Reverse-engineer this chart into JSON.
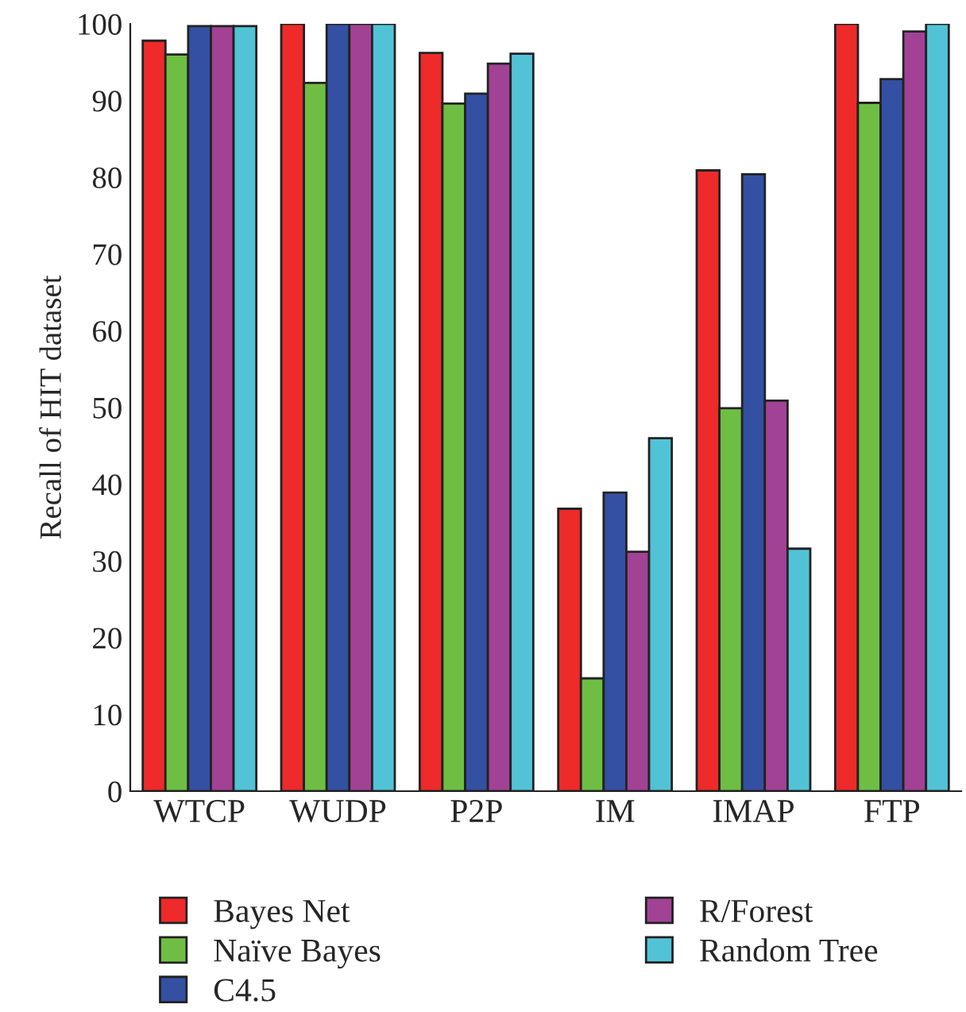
{
  "chart_data": {
    "type": "bar",
    "ylabel": "Recall of HIT dataset",
    "categories": [
      "WTCP",
      "WUDP",
      "P2P",
      "IM",
      "IMAP",
      "FTP"
    ],
    "series": [
      {
        "name": "Bayes Net",
        "color": "#ee2a2a",
        "values": [
          97.8,
          100,
          96.2,
          36.8,
          80.9,
          100
        ]
      },
      {
        "name": "Naïve Bayes",
        "color": "#6fbe44",
        "values": [
          96,
          92.3,
          89.6,
          14.7,
          49.9,
          89.7
        ]
      },
      {
        "name": "C4.5",
        "color": "#3450a2",
        "values": [
          99.7,
          100,
          90.9,
          38.9,
          80.4,
          92.8
        ]
      },
      {
        "name": "R/Forest",
        "color": "#a24295",
        "values": [
          99.7,
          100,
          94.8,
          31.2,
          50.9,
          99
        ]
      },
      {
        "name": "Random Tree",
        "color": "#52c3d6",
        "values": [
          99.7,
          100,
          96.1,
          46,
          31.6,
          100
        ]
      }
    ],
    "ylim": [
      0,
      100
    ],
    "yticks": [
      0,
      10,
      20,
      30,
      40,
      50,
      60,
      70,
      80,
      90,
      100
    ],
    "grid": false,
    "legend": "bottom"
  }
}
